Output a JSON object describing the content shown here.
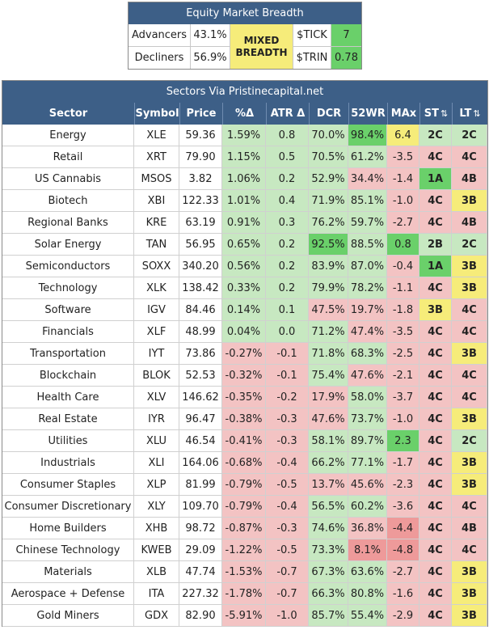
{
  "breadth": {
    "title": "Equity Market Breadth",
    "advancers_label": "Advancers",
    "advancers_value": "43.1%",
    "decliners_label": "Decliners",
    "decliners_value": "56.9%",
    "status_line1": "MIXED",
    "status_line2": "BREADTH",
    "tick_label": "$TICK",
    "tick_value": "7",
    "trin_label": "$TRIN",
    "trin_value": "0.78"
  },
  "sectors": {
    "title": "Sectors Via Pristinecapital.net",
    "columns": [
      "Sector",
      "Symbol",
      "Price",
      "%Δ",
      "ATR Δ",
      "DCR",
      "52WR",
      "MAx",
      "ST",
      "LT"
    ],
    "sort_glyph": "⇅",
    "rows": [
      {
        "sector": "Energy",
        "symbol": "XLE",
        "price": "59.36",
        "pct": "1.59%",
        "atr": "0.8",
        "dcr": "70.0%",
        "wr": "98.4%",
        "max": "6.4",
        "st": "2C",
        "lt": "2C"
      },
      {
        "sector": "Retail",
        "symbol": "XRT",
        "price": "79.90",
        "pct": "1.15%",
        "atr": "0.5",
        "dcr": "70.5%",
        "wr": "61.2%",
        "max": "-3.5",
        "st": "4C",
        "lt": "4C"
      },
      {
        "sector": "US Cannabis",
        "symbol": "MSOS",
        "price": "3.82",
        "pct": "1.06%",
        "atr": "0.2",
        "dcr": "52.9%",
        "wr": "34.4%",
        "max": "-1.4",
        "st": "1A",
        "lt": "4B"
      },
      {
        "sector": "Biotech",
        "symbol": "XBI",
        "price": "122.33",
        "pct": "1.01%",
        "atr": "0.4",
        "dcr": "71.9%",
        "wr": "85.1%",
        "max": "-1.0",
        "st": "4C",
        "lt": "3B"
      },
      {
        "sector": "Regional Banks",
        "symbol": "KRE",
        "price": "63.19",
        "pct": "0.91%",
        "atr": "0.3",
        "dcr": "76.2%",
        "wr": "59.7%",
        "max": "-2.7",
        "st": "4C",
        "lt": "4B"
      },
      {
        "sector": "Solar Energy",
        "symbol": "TAN",
        "price": "56.95",
        "pct": "0.65%",
        "atr": "0.2",
        "dcr": "92.5%",
        "wr": "88.5%",
        "max": "0.8",
        "st": "2B",
        "lt": "2C"
      },
      {
        "sector": "Semiconductors",
        "symbol": "SOXX",
        "price": "340.20",
        "pct": "0.56%",
        "atr": "0.2",
        "dcr": "83.9%",
        "wr": "87.0%",
        "max": "-0.4",
        "st": "1A",
        "lt": "3B"
      },
      {
        "sector": "Technology",
        "symbol": "XLK",
        "price": "138.42",
        "pct": "0.33%",
        "atr": "0.2",
        "dcr": "79.9%",
        "wr": "78.2%",
        "max": "-1.1",
        "st": "4C",
        "lt": "3B"
      },
      {
        "sector": "Software",
        "symbol": "IGV",
        "price": "84.46",
        "pct": "0.14%",
        "atr": "0.1",
        "dcr": "47.5%",
        "wr": "19.7%",
        "max": "-1.8",
        "st": "3B",
        "lt": "4C"
      },
      {
        "sector": "Financials",
        "symbol": "XLF",
        "price": "48.99",
        "pct": "0.04%",
        "atr": "0.0",
        "dcr": "71.2%",
        "wr": "47.4%",
        "max": "-3.5",
        "st": "4C",
        "lt": "4C"
      },
      {
        "sector": "Transportation",
        "symbol": "IYT",
        "price": "73.86",
        "pct": "-0.27%",
        "atr": "-0.1",
        "dcr": "71.8%",
        "wr": "68.3%",
        "max": "-2.5",
        "st": "4C",
        "lt": "3B"
      },
      {
        "sector": "Blockchain",
        "symbol": "BLOK",
        "price": "52.53",
        "pct": "-0.32%",
        "atr": "-0.1",
        "dcr": "75.4%",
        "wr": "47.6%",
        "max": "-2.1",
        "st": "4C",
        "lt": "4C"
      },
      {
        "sector": "Health Care",
        "symbol": "XLV",
        "price": "146.62",
        "pct": "-0.35%",
        "atr": "-0.2",
        "dcr": "17.9%",
        "wr": "58.0%",
        "max": "-3.7",
        "st": "4C",
        "lt": "4C"
      },
      {
        "sector": "Real Estate",
        "symbol": "IYR",
        "price": "96.47",
        "pct": "-0.38%",
        "atr": "-0.3",
        "dcr": "47.6%",
        "wr": "73.7%",
        "max": "-1.0",
        "st": "4C",
        "lt": "3B"
      },
      {
        "sector": "Utilities",
        "symbol": "XLU",
        "price": "46.54",
        "pct": "-0.41%",
        "atr": "-0.3",
        "dcr": "58.1%",
        "wr": "89.7%",
        "max": "2.3",
        "st": "4C",
        "lt": "2C"
      },
      {
        "sector": "Industrials",
        "symbol": "XLI",
        "price": "164.06",
        "pct": "-0.68%",
        "atr": "-0.4",
        "dcr": "66.2%",
        "wr": "77.1%",
        "max": "-1.7",
        "st": "4C",
        "lt": "3B"
      },
      {
        "sector": "Consumer Staples",
        "symbol": "XLP",
        "price": "81.99",
        "pct": "-0.79%",
        "atr": "-0.5",
        "dcr": "13.7%",
        "wr": "45.6%",
        "max": "-2.3",
        "st": "4C",
        "lt": "3B"
      },
      {
        "sector": "Consumer Discretionary",
        "symbol": "XLY",
        "price": "109.70",
        "pct": "-0.79%",
        "atr": "-0.4",
        "dcr": "56.5%",
        "wr": "60.2%",
        "max": "-3.6",
        "st": "4C",
        "lt": "4C"
      },
      {
        "sector": "Home Builders",
        "symbol": "XHB",
        "price": "98.72",
        "pct": "-0.87%",
        "atr": "-0.3",
        "dcr": "74.6%",
        "wr": "36.8%",
        "max": "-4.4",
        "st": "4C",
        "lt": "4B"
      },
      {
        "sector": "Chinese Technology",
        "symbol": "KWEB",
        "price": "29.09",
        "pct": "-1.22%",
        "atr": "-0.5",
        "dcr": "73.3%",
        "wr": "8.1%",
        "max": "-4.8",
        "st": "4C",
        "lt": "4C"
      },
      {
        "sector": "Materials",
        "symbol": "XLB",
        "price": "47.74",
        "pct": "-1.53%",
        "atr": "-0.7",
        "dcr": "67.3%",
        "wr": "63.6%",
        "max": "-2.7",
        "st": "4C",
        "lt": "3B"
      },
      {
        "sector": "Aerospace + Defense",
        "symbol": "ITA",
        "price": "227.32",
        "pct": "-1.78%",
        "atr": "-0.7",
        "dcr": "66.3%",
        "wr": "80.8%",
        "max": "-1.6",
        "st": "4C",
        "lt": "3B"
      },
      {
        "sector": "Gold Miners",
        "symbol": "GDX",
        "price": "82.90",
        "pct": "-5.91%",
        "atr": "-1.0",
        "dcr": "85.7%",
        "wr": "55.4%",
        "max": "-2.9",
        "st": "4C",
        "lt": "3B"
      }
    ]
  },
  "colors": {
    "header_blue": "#3d5f87",
    "light_green": "#c7e8c1",
    "mid_green": "#6ad06a",
    "light_red": "#f3c3c3",
    "mid_red": "#ee9a9a",
    "yellow": "#f6ec7a"
  }
}
